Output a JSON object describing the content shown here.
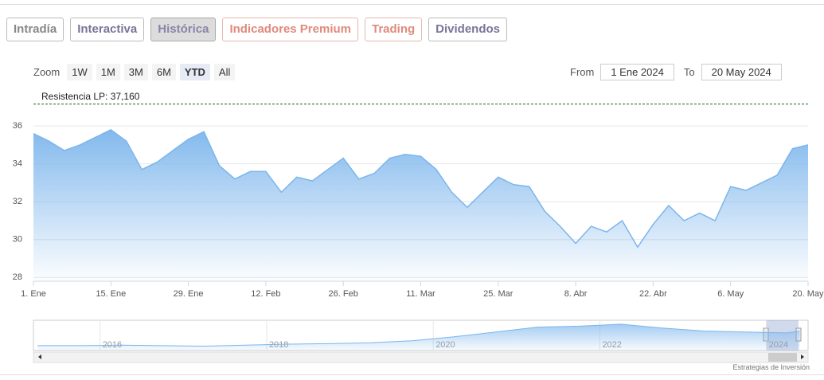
{
  "tabs": [
    "Intradía",
    "Interactiva",
    "Histórica",
    "Indicadores Premium",
    "Trading",
    "Dividendos"
  ],
  "zoom": {
    "label": "Zoom",
    "buttons": [
      "1W",
      "1M",
      "3M",
      "6M",
      "YTD",
      "All"
    ]
  },
  "range": {
    "from_label": "From",
    "from": "1 Ene 2024",
    "to_label": "To",
    "to": "20 May 2024"
  },
  "credit": "Estrategias de Inversión",
  "chart_data": [
    {
      "type": "area",
      "annotations": [
        {
          "text": "Resistencia LP: 37,160",
          "value": 37.16
        }
      ],
      "categories": [
        "1. Ene",
        null,
        null,
        null,
        null,
        "15. Ene",
        null,
        null,
        null,
        null,
        "29. Ene",
        null,
        null,
        null,
        null,
        "12. Feb",
        null,
        null,
        null,
        null,
        "26. Feb",
        null,
        null,
        null,
        null,
        "11. Mar",
        null,
        null,
        null,
        null,
        "25. Mar",
        null,
        null,
        null,
        null,
        "8. Abr",
        null,
        null,
        null,
        null,
        "22. Abr",
        null,
        null,
        null,
        null,
        "6. May",
        null,
        null,
        null,
        null,
        "20. May"
      ],
      "values": [
        35.6,
        35.2,
        34.7,
        35.0,
        35.4,
        35.8,
        35.2,
        33.7,
        34.1,
        34.7,
        35.3,
        35.7,
        33.9,
        33.2,
        33.6,
        33.6,
        32.5,
        33.3,
        33.1,
        33.7,
        34.3,
        33.2,
        33.5,
        34.3,
        34.5,
        34.4,
        33.7,
        32.5,
        31.7,
        32.5,
        33.3,
        32.9,
        32.8,
        31.5,
        30.7,
        29.8,
        30.7,
        30.4,
        31.0,
        29.6,
        30.8,
        31.8,
        31.0,
        31.4,
        31.0,
        32.8,
        32.6,
        33.0,
        33.4,
        34.8,
        35.0
      ],
      "color": "#7cb5ec",
      "ylim": [
        27.8,
        37.9
      ],
      "yticks": [
        28,
        30,
        32,
        34,
        36
      ],
      "grid": true
    },
    {
      "type": "navigator",
      "x": [
        2015.25,
        2015.75,
        2016.25,
        2016.75,
        2017.25,
        2017.75,
        2018.25,
        2018.75,
        2019.25,
        2019.75,
        2020.25,
        2020.75,
        2021.25,
        2021.75,
        2022.25,
        2022.75,
        2023.25,
        2023.75,
        2024.25,
        2024.4
      ],
      "values": [
        20,
        20,
        20.5,
        20,
        19.5,
        20.5,
        21.5,
        22,
        23,
        25,
        29,
        34,
        39,
        40,
        42,
        38,
        35,
        34,
        33,
        35
      ],
      "color": "#7cb5ec",
      "xlim": [
        2015.2,
        2024.5
      ],
      "xticks": [
        2016,
        2018,
        2020,
        2022,
        2024
      ],
      "ylim": [
        15,
        46
      ]
    }
  ]
}
